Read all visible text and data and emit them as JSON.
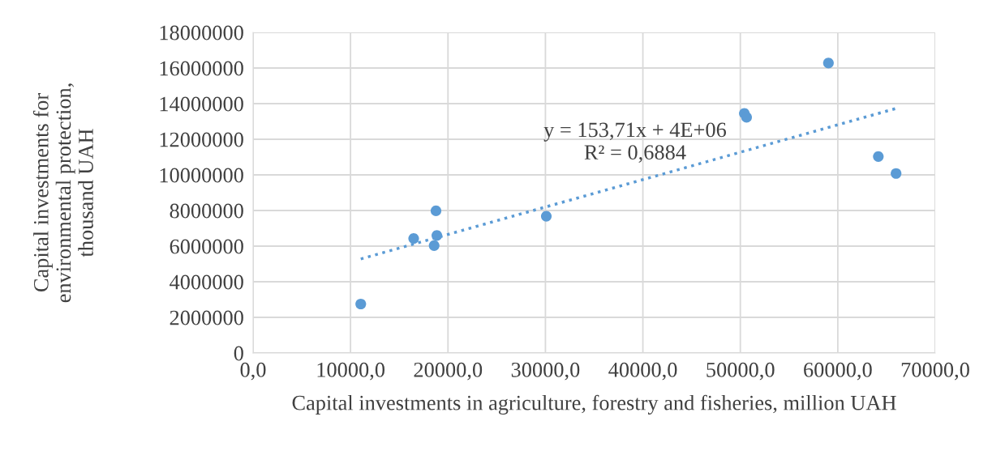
{
  "chart_data": {
    "type": "scatter",
    "xlabel": "Capital investments in agriculture, forestry and fisheries, million UAH",
    "ylabel": "Capital investments for environmental protection, thousand UAH",
    "series": [
      {
        "color": "#5b9bd5",
        "marker": "circle",
        "x": [
          11050,
          16480,
          18770,
          18860,
          18580,
          30090,
          50410,
          50640,
          59040,
          64160,
          65980
        ],
        "values": [
          2750000,
          6430000,
          7980000,
          6600000,
          6030000,
          7680000,
          13450000,
          13230000,
          16280000,
          11030000,
          10080000
        ]
      },
      {
        "type": "line",
        "color": "#5b9bd5",
        "line_style": "dotted",
        "x": [
          11050,
          65980
        ],
        "values": [
          5280000,
          13730000
        ]
      }
    ],
    "xlim": [
      0,
      70000
    ],
    "ylim": [
      0,
      18000000
    ],
    "xticks": [
      {
        "value": 0,
        "label": "0,0"
      },
      {
        "value": 10000,
        "label": "10000,0"
      },
      {
        "value": 20000,
        "label": "20000,0"
      },
      {
        "value": 30000,
        "label": "30000,0"
      },
      {
        "value": 40000,
        "label": "40000,0"
      },
      {
        "value": 50000,
        "label": "50000,0"
      },
      {
        "value": 60000,
        "label": "60000,0"
      },
      {
        "value": 70000,
        "label": "70000,0"
      }
    ],
    "yticks": [
      0,
      2000000,
      4000000,
      6000000,
      8000000,
      10000000,
      12000000,
      14000000,
      16000000,
      18000000
    ],
    "grid": true,
    "legend": false,
    "annotations": [
      "y = 153,71x + 4E+06",
      "R² = 0,6884"
    ]
  }
}
